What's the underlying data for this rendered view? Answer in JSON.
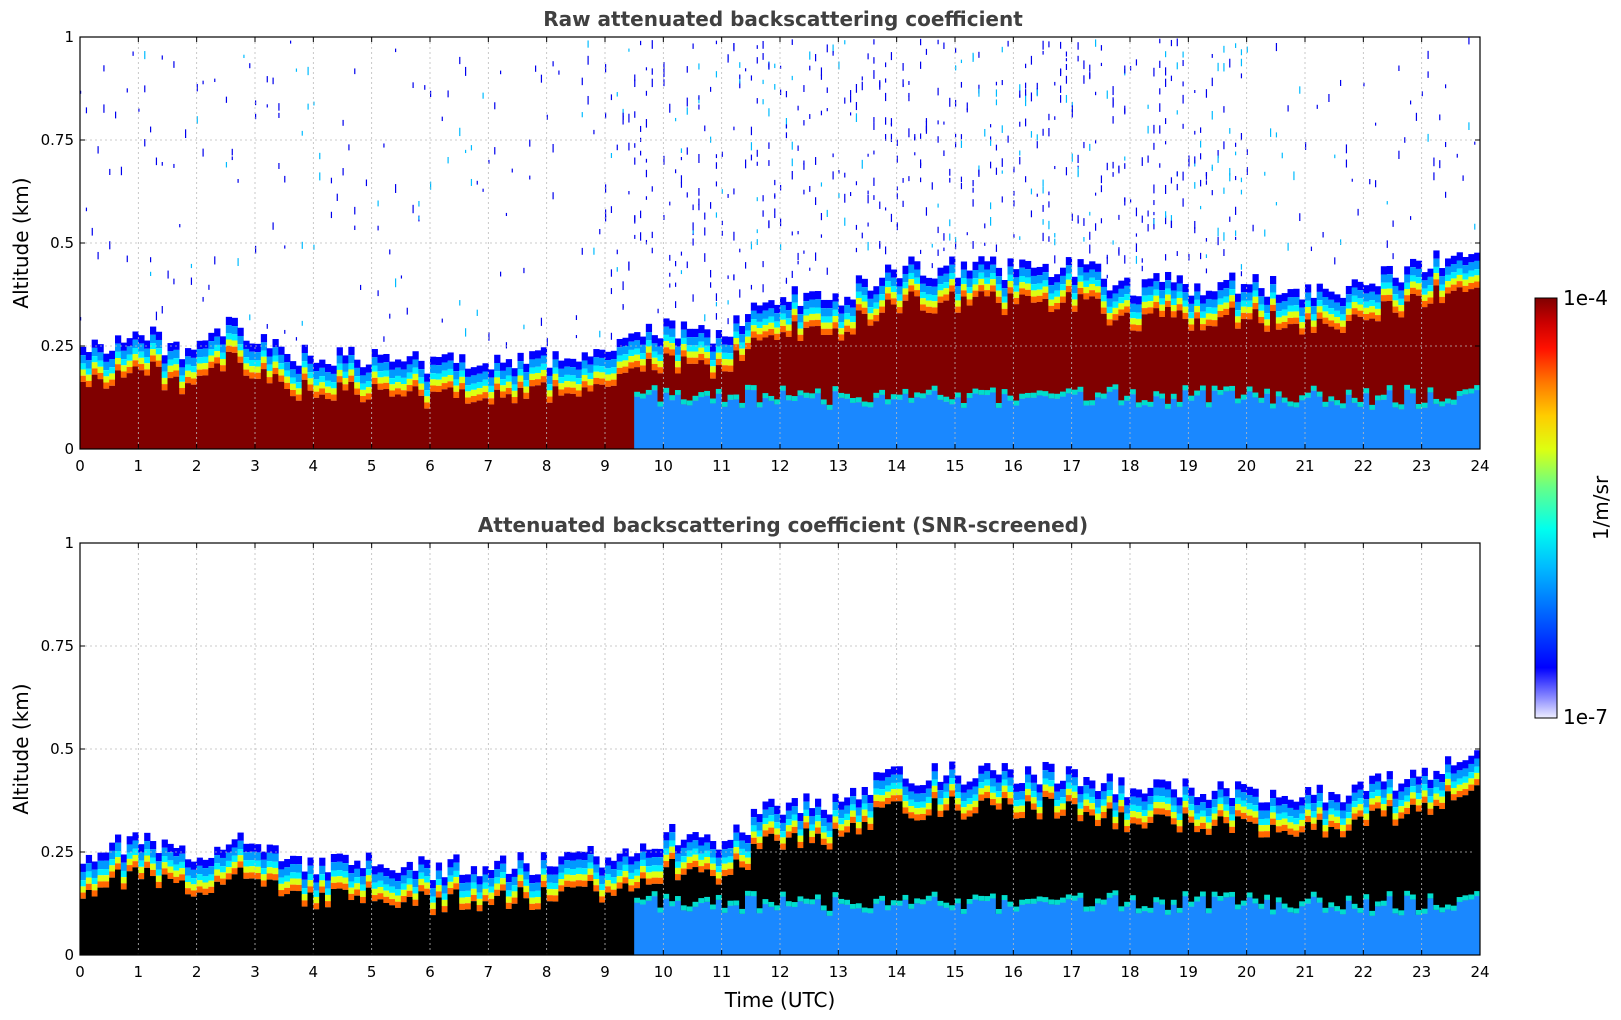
{
  "chart_data": [
    {
      "type": "heatmap",
      "title": "Raw attenuated backscattering coefficient",
      "xlabel": "",
      "ylabel": "Altitude (km)",
      "xlim": [
        0,
        24
      ],
      "ylim": [
        0,
        1
      ],
      "x_ticks": [
        "0",
        "1",
        "2",
        "3",
        "4",
        "5",
        "6",
        "7",
        "8",
        "9",
        "10",
        "11",
        "12",
        "13",
        "14",
        "15",
        "16",
        "17",
        "18",
        "19",
        "20",
        "21",
        "22",
        "23",
        "24"
      ],
      "y_ticks": [
        "0",
        "0.25",
        "0.5",
        "0.75",
        "1"
      ],
      "grid": true,
      "screened": false,
      "boundary_layer_top_km": {
        "time_utc": [
          0,
          1,
          2,
          2.6,
          3,
          4,
          5,
          6,
          7,
          8,
          9,
          10,
          11,
          12,
          13,
          14,
          15,
          16,
          17,
          18,
          19,
          20,
          21,
          22,
          23,
          24
        ],
        "altitude_km": [
          0.22,
          0.26,
          0.21,
          0.28,
          0.24,
          0.2,
          0.2,
          0.19,
          0.2,
          0.2,
          0.22,
          0.27,
          0.26,
          0.35,
          0.35,
          0.42,
          0.42,
          0.42,
          0.42,
          0.38,
          0.38,
          0.38,
          0.37,
          0.38,
          0.43,
          0.45
        ]
      }
    },
    {
      "type": "heatmap",
      "title": "Attenuated backscattering coefficient (SNR-screened)",
      "xlabel": "Time (UTC)",
      "ylabel": "Altitude (km)",
      "xlim": [
        0,
        24
      ],
      "ylim": [
        0,
        1
      ],
      "x_ticks": [
        "0",
        "1",
        "2",
        "3",
        "4",
        "5",
        "6",
        "7",
        "8",
        "9",
        "10",
        "11",
        "12",
        "13",
        "14",
        "15",
        "16",
        "17",
        "18",
        "19",
        "20",
        "21",
        "22",
        "23",
        "24"
      ],
      "y_ticks": [
        "0",
        "0.25",
        "0.5",
        "0.75",
        "1"
      ],
      "grid": true,
      "screened": true
    }
  ],
  "colorbar": {
    "label": "1/m/sr",
    "max_label": "1e-4",
    "min_label": "1e-7",
    "scale": "log",
    "range": [
      1e-07,
      0.0001
    ],
    "colormap": "jet",
    "saturated_color": "#000000"
  }
}
